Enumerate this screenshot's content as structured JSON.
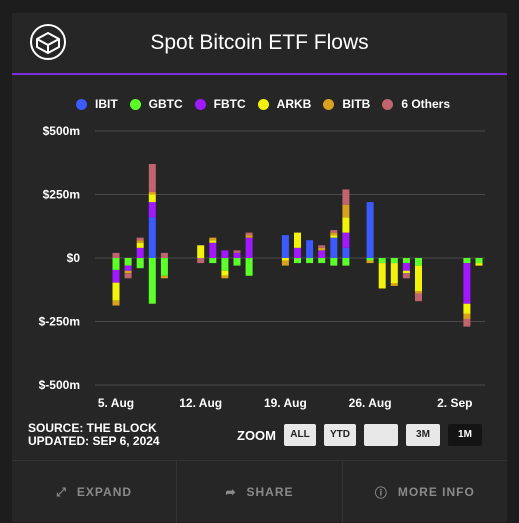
{
  "header": {
    "title": "Spot Bitcoin ETF Flows"
  },
  "colors": {
    "accent": "#7b2fe0",
    "background": "#262626",
    "grid": "#4a4a4a"
  },
  "chart_data": {
    "type": "bar",
    "stacked": true,
    "title": "Spot Bitcoin ETF Flows",
    "y_unit": "$M",
    "ylim": [
      -500,
      500
    ],
    "yticks": [
      500,
      250,
      0,
      -250,
      -500
    ],
    "ytick_labels": [
      "$500m",
      "$250m",
      "$0",
      "$-250m",
      "$-500m"
    ],
    "xtick_labels": [
      "5. Aug",
      "12. Aug",
      "19. Aug",
      "26. Aug",
      "2. Sep"
    ],
    "xtick_dates": [
      "2024-08-05",
      "2024-08-12",
      "2024-08-19",
      "2024-08-26",
      "2024-09-02"
    ],
    "grid": true,
    "legend_position": "top",
    "series": [
      {
        "name": "IBIT",
        "color": "#3b5bff"
      },
      {
        "name": "GBTC",
        "color": "#5cff2a"
      },
      {
        "name": "FBTC",
        "color": "#a019ff"
      },
      {
        "name": "ARKB",
        "color": "#f2f20a"
      },
      {
        "name": "BITB",
        "color": "#d9a21e"
      },
      {
        "name": "6 Others",
        "color": "#c0646e"
      }
    ],
    "days": [
      {
        "date": "2024-08-05",
        "IBIT": 0,
        "GBTC": -47,
        "FBTC": -50,
        "ARKB": -70,
        "BITB": -20,
        "6 Others": 20
      },
      {
        "date": "2024-08-06",
        "IBIT": 0,
        "GBTC": -30,
        "FBTC": -20,
        "ARKB": 0,
        "BITB": -10,
        "6 Others": -20
      },
      {
        "date": "2024-08-07",
        "IBIT": 0,
        "GBTC": -40,
        "FBTC": 40,
        "ARKB": 20,
        "BITB": 10,
        "6 Others": 10
      },
      {
        "date": "2024-08-08",
        "IBIT": 160,
        "GBTC": -180,
        "FBTC": 60,
        "ARKB": 30,
        "BITB": 10,
        "6 Others": 110
      },
      {
        "date": "2024-08-09",
        "IBIT": 0,
        "GBTC": -70,
        "FBTC": 0,
        "ARKB": 0,
        "BITB": -10,
        "6 Others": 20
      },
      {
        "date": "2024-08-12",
        "IBIT": 0,
        "GBTC": 0,
        "FBTC": 0,
        "ARKB": 50,
        "BITB": 0,
        "6 Others": -20
      },
      {
        "date": "2024-08-13",
        "IBIT": 0,
        "GBTC": -20,
        "FBTC": 60,
        "ARKB": 10,
        "BITB": 10,
        "6 Others": 0
      },
      {
        "date": "2024-08-14",
        "IBIT": 0,
        "GBTC": -50,
        "FBTC": 30,
        "ARKB": -20,
        "BITB": -10,
        "6 Others": 0
      },
      {
        "date": "2024-08-15",
        "IBIT": 0,
        "GBTC": -30,
        "FBTC": 20,
        "ARKB": 0,
        "BITB": 0,
        "6 Others": 10
      },
      {
        "date": "2024-08-16",
        "IBIT": 0,
        "GBTC": -70,
        "FBTC": 80,
        "ARKB": 0,
        "BITB": 10,
        "6 Others": 10
      },
      {
        "date": "2024-08-19",
        "IBIT": 90,
        "GBTC": 0,
        "FBTC": 0,
        "ARKB": -10,
        "BITB": -20,
        "6 Others": 0
      },
      {
        "date": "2024-08-20",
        "IBIT": 0,
        "GBTC": -20,
        "FBTC": 40,
        "ARKB": 60,
        "BITB": 0,
        "6 Others": 0
      },
      {
        "date": "2024-08-21",
        "IBIT": 70,
        "GBTC": -20,
        "FBTC": 0,
        "ARKB": 0,
        "BITB": 0,
        "6 Others": 0
      },
      {
        "date": "2024-08-22",
        "IBIT": 0,
        "GBTC": -20,
        "FBTC": 30,
        "ARKB": 0,
        "BITB": 10,
        "6 Others": 10
      },
      {
        "date": "2024-08-23",
        "IBIT": 80,
        "GBTC": -30,
        "FBTC": 0,
        "ARKB": 10,
        "BITB": 10,
        "6 Others": 10
      },
      {
        "date": "2024-08-24",
        "IBIT": 40,
        "GBTC": -30,
        "FBTC": 60,
        "ARKB": 60,
        "BITB": 50,
        "6 Others": 60
      },
      {
        "date": "2024-08-26",
        "IBIT": 220,
        "GBTC": -10,
        "FBTC": 0,
        "ARKB": 0,
        "BITB": -10,
        "6 Others": 0
      },
      {
        "date": "2024-08-27",
        "IBIT": 0,
        "GBTC": -20,
        "FBTC": 0,
        "ARKB": -100,
        "BITB": 0,
        "6 Others": 0
      },
      {
        "date": "2024-08-28",
        "IBIT": 0,
        "GBTC": -20,
        "FBTC": 0,
        "ARKB": -80,
        "BITB": -10,
        "6 Others": 0
      },
      {
        "date": "2024-08-29",
        "IBIT": 0,
        "GBTC": -20,
        "FBTC": -30,
        "ARKB": -10,
        "BITB": 0,
        "6 Others": -20
      },
      {
        "date": "2024-08-30",
        "IBIT": 0,
        "GBTC": -30,
        "FBTC": 0,
        "ARKB": -100,
        "BITB": -10,
        "6 Others": -30
      },
      {
        "date": "2024-09-03",
        "IBIT": 0,
        "GBTC": -20,
        "FBTC": -160,
        "ARKB": -40,
        "BITB": -20,
        "6 Others": -30
      },
      {
        "date": "2024-09-04",
        "IBIT": 0,
        "GBTC": -20,
        "FBTC": 0,
        "ARKB": -10,
        "BITB": 0,
        "6 Others": 0
      }
    ]
  },
  "source": {
    "line1": "SOURCE: THE BLOCK",
    "line2": "UPDATED: SEP 6, 2024"
  },
  "zoom": {
    "label": "ZOOM",
    "buttons": [
      "ALL",
      "YTD",
      "",
      "3M",
      "1M"
    ],
    "active": "1M"
  },
  "footer": {
    "expand_label": "EXPAND",
    "expand_icon": "expand-arrows-icon",
    "share_label": "SHARE",
    "share_icon": "share-arrow-icon",
    "more_label": "MORE INFO",
    "more_icon": "info-icon"
  }
}
